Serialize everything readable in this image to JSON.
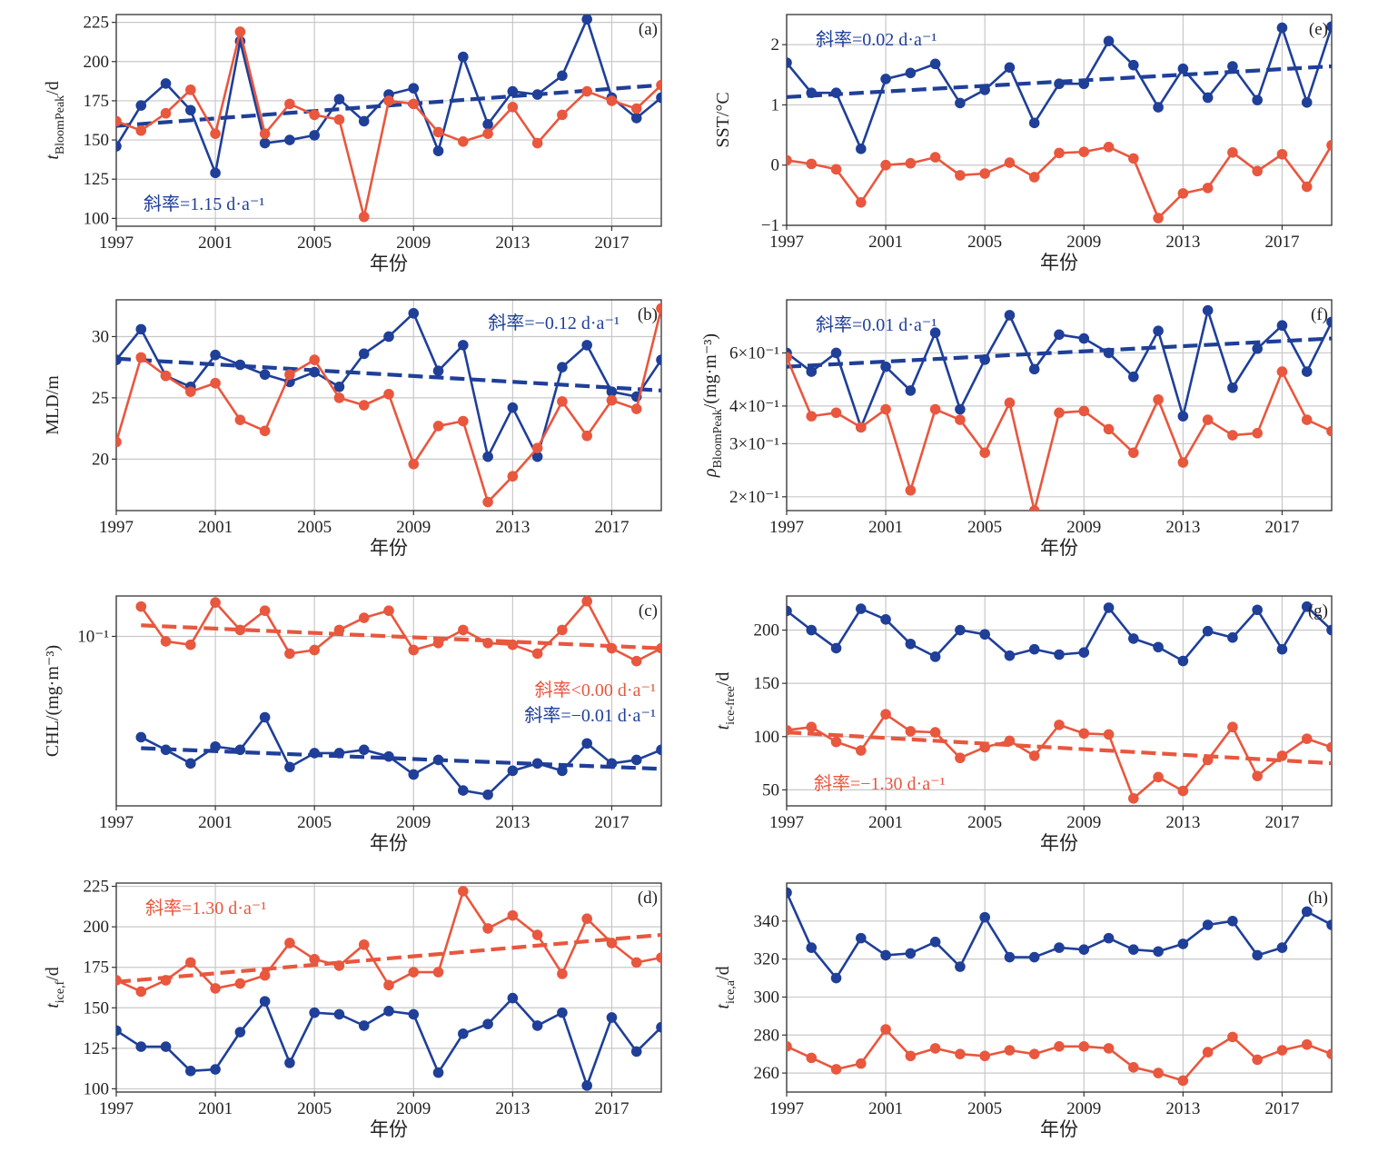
{
  "colors": {
    "blue": "#1f3f98",
    "red": "#e8573e",
    "grid": "#c8c8c8"
  },
  "chart_data": [
    {
      "id": "a",
      "type": "line",
      "panel_label": "(a)",
      "ylabel": "t_BloomPeak/d",
      "ylabel_main": "t",
      "ylabel_sub": "BloomPeak",
      "ylabel_suffix": "/d",
      "xlabel": "年份",
      "xlim": [
        1997,
        2019
      ],
      "ylim": [
        95,
        230
      ],
      "yscale": "linear",
      "xticks": [
        1997,
        2001,
        2005,
        2009,
        2013,
        2017
      ],
      "yticks": [
        100,
        125,
        150,
        175,
        200,
        225
      ],
      "ytick_labels": [
        "100",
        "125",
        "150",
        "175",
        "200",
        "225"
      ],
      "x": [
        1997,
        1998,
        1999,
        2000,
        2001,
        2002,
        2003,
        2004,
        2005,
        2006,
        2007,
        2008,
        2009,
        2010,
        2011,
        2012,
        2013,
        2014,
        2015,
        2016,
        2017,
        2018,
        2019
      ],
      "series": [
        {
          "color": "blue",
          "values": [
            146,
            172,
            186,
            169,
            129,
            213,
            148,
            150,
            153,
            176,
            162,
            179,
            183,
            143,
            203,
            160,
            181,
            179,
            191,
            227,
            177,
            164,
            177
          ]
        },
        {
          "color": "red",
          "values": [
            162,
            156,
            167,
            182,
            154,
            219,
            154,
            173,
            166,
            163,
            101,
            175,
            173,
            155,
            149,
            154,
            171,
            148,
            166,
            181,
            175,
            170,
            185
          ]
        }
      ],
      "trends": [
        {
          "color": "blue",
          "x": [
            1997,
            2019
          ],
          "y": [
            159,
            185
          ]
        }
      ],
      "slope_labels": [
        {
          "text": "斜率=1.15 d·a⁻¹",
          "color": "blue",
          "anchor": "bottom-left"
        }
      ]
    },
    {
      "id": "e",
      "type": "line",
      "panel_label": "(e)",
      "ylabel": "SST/°C",
      "xlabel": "年份",
      "xlim": [
        1997,
        2019
      ],
      "ylim": [
        -1,
        2.5
      ],
      "yscale": "linear",
      "xticks": [
        1997,
        2001,
        2005,
        2009,
        2013,
        2017
      ],
      "yticks": [
        -1,
        0,
        1,
        2
      ],
      "ytick_labels": [
        "−1",
        "0",
        "1",
        "2"
      ],
      "x": [
        1997,
        1998,
        1999,
        2000,
        2001,
        2002,
        2003,
        2004,
        2005,
        2006,
        2007,
        2008,
        2009,
        2010,
        2011,
        2012,
        2013,
        2014,
        2015,
        2016,
        2017,
        2018,
        2019
      ],
      "series": [
        {
          "color": "blue",
          "values": [
            1.7,
            1.2,
            1.2,
            0.27,
            1.43,
            1.53,
            1.68,
            1.03,
            1.25,
            1.62,
            0.7,
            1.35,
            1.35,
            2.06,
            1.66,
            0.96,
            1.6,
            1.12,
            1.64,
            1.08,
            2.28,
            1.04,
            2.3
          ]
        },
        {
          "color": "red",
          "values": [
            0.08,
            0.02,
            -0.07,
            -0.62,
            0.0,
            0.03,
            0.13,
            -0.17,
            -0.14,
            0.04,
            -0.2,
            0.2,
            0.22,
            0.3,
            0.11,
            -0.88,
            -0.47,
            -0.38,
            0.21,
            -0.1,
            0.18,
            -0.36,
            0.33
          ]
        }
      ],
      "trends": [
        {
          "color": "blue",
          "x": [
            1997,
            2019
          ],
          "y": [
            1.13,
            1.64
          ]
        }
      ],
      "slope_labels": [
        {
          "text": "斜率=0.02 d·a⁻¹",
          "color": "blue",
          "anchor": "top-left"
        }
      ]
    },
    {
      "id": "b",
      "type": "line",
      "panel_label": "(b)",
      "ylabel": "MLD/m",
      "xlabel": "年份",
      "xlim": [
        1997,
        2019
      ],
      "ylim": [
        15.8,
        33
      ],
      "yscale": "linear",
      "xticks": [
        1997,
        2001,
        2005,
        2009,
        2013,
        2017
      ],
      "yticks": [
        20,
        25,
        30
      ],
      "ytick_labels": [
        "20",
        "25",
        "30"
      ],
      "x": [
        1997,
        1998,
        1999,
        2000,
        2001,
        2002,
        2003,
        2004,
        2005,
        2006,
        2007,
        2008,
        2009,
        2010,
        2011,
        2012,
        2013,
        2014,
        2015,
        2016,
        2017,
        2018,
        2019
      ],
      "series": [
        {
          "color": "blue",
          "values": [
            28.1,
            30.6,
            26.8,
            25.9,
            28.5,
            27.7,
            26.9,
            26.3,
            27.1,
            25.9,
            28.6,
            30.0,
            31.9,
            27.2,
            29.3,
            20.2,
            24.2,
            20.2,
            27.5,
            29.3,
            25.5,
            25.1,
            28.1
          ]
        },
        {
          "color": "red",
          "values": [
            21.4,
            28.3,
            26.8,
            25.5,
            26.2,
            23.2,
            22.3,
            26.9,
            28.1,
            25.0,
            24.4,
            25.3,
            19.6,
            22.7,
            23.1,
            16.5,
            18.6,
            20.9,
            24.7,
            21.9,
            24.8,
            24.1,
            32.3
          ]
        }
      ],
      "trends": [
        {
          "color": "blue",
          "x": [
            1997,
            2019
          ],
          "y": [
            28.2,
            25.6
          ]
        }
      ],
      "slope_labels": [
        {
          "text": "斜率=−0.12 d·a⁻¹",
          "color": "blue",
          "anchor": "top-right"
        }
      ]
    },
    {
      "id": "f",
      "type": "line",
      "panel_label": "(f)",
      "ylabel": "ρ_BloomPeak/(mg·m⁻³)",
      "ylabel_main": "ρ",
      "ylabel_sub": "BloomPeak",
      "ylabel_suffix": "/(mg·m⁻³)",
      "xlabel": "年份",
      "xlim": [
        1997,
        2019
      ],
      "ylim": [
        0.18,
        0.9
      ],
      "yscale": "log",
      "xticks": [
        1997,
        2001,
        2005,
        2009,
        2013,
        2017
      ],
      "yticks": [
        0.2,
        0.3,
        0.4,
        0.6
      ],
      "ytick_labels": [
        "2×10⁻¹",
        "3×10⁻¹",
        "4×10⁻¹",
        "6×10⁻¹"
      ],
      "x": [
        1997,
        1998,
        1999,
        2000,
        2001,
        2002,
        2003,
        2004,
        2005,
        2006,
        2007,
        2008,
        2009,
        2010,
        2011,
        2012,
        2013,
        2014,
        2015,
        2016,
        2017,
        2018,
        2019
      ],
      "series": [
        {
          "color": "blue",
          "values": [
            0.6,
            0.52,
            0.6,
            0.34,
            0.54,
            0.45,
            0.7,
            0.39,
            0.57,
            0.8,
            0.53,
            0.69,
            0.67,
            0.6,
            0.5,
            0.71,
            0.37,
            0.83,
            0.46,
            0.62,
            0.74,
            0.52,
            0.76
          ]
        },
        {
          "color": "red",
          "values": [
            0.58,
            0.37,
            0.38,
            0.34,
            0.39,
            0.21,
            0.39,
            0.36,
            0.28,
            0.41,
            0.18,
            0.38,
            0.385,
            0.335,
            0.28,
            0.42,
            0.26,
            0.36,
            0.32,
            0.325,
            0.52,
            0.36,
            0.33
          ]
        }
      ],
      "trends": [
        {
          "color": "blue",
          "x": [
            1997,
            2019
          ],
          "y": [
            0.54,
            0.67
          ]
        }
      ],
      "slope_labels": [
        {
          "text": "斜率=0.01 d·a⁻¹",
          "color": "blue",
          "anchor": "top-left"
        }
      ]
    },
    {
      "id": "c",
      "type": "line",
      "panel_label": "(c)",
      "ylabel": "CHL/(mg·m⁻³)",
      "xlabel": "年份",
      "xlim": [
        1997,
        2019
      ],
      "ylim": [
        0.0355,
        0.128
      ],
      "yscale": "log",
      "xticks": [
        1997,
        2001,
        2005,
        2009,
        2013,
        2017
      ],
      "yticks": [
        0.1
      ],
      "ytick_labels": [
        "10⁻¹"
      ],
      "x": [
        1998,
        1999,
        2000,
        2001,
        2002,
        2003,
        2004,
        2005,
        2006,
        2007,
        2008,
        2009,
        2010,
        2011,
        2012,
        2013,
        2014,
        2015,
        2016,
        2017,
        2018,
        2019
      ],
      "series": [
        {
          "color": "red",
          "values": [
            0.12,
            0.097,
            0.095,
            0.123,
            0.104,
            0.117,
            0.09,
            0.092,
            0.104,
            0.112,
            0.117,
            0.092,
            0.096,
            0.104,
            0.096,
            0.095,
            0.09,
            0.104,
            0.124,
            0.093,
            0.086,
            0.093
          ]
        },
        {
          "color": "blue",
          "values": [
            0.054,
            0.05,
            0.046,
            0.051,
            0.05,
            0.061,
            0.045,
            0.049,
            0.049,
            0.05,
            0.048,
            0.043,
            0.047,
            0.039,
            0.038,
            0.044,
            0.046,
            0.044,
            0.052,
            0.046,
            0.047,
            0.05
          ]
        }
      ],
      "trends": [
        {
          "color": "red",
          "x": [
            1998,
            2019
          ],
          "y": [
            0.107,
            0.093
          ]
        },
        {
          "color": "blue",
          "x": [
            1998,
            2019
          ],
          "y": [
            0.0505,
            0.0445
          ]
        }
      ],
      "slope_labels": [
        {
          "text": "斜率<0.00 d·a⁻¹",
          "color": "red",
          "anchor": "mid-right-upper"
        },
        {
          "text": "斜率=−0.01 d·a⁻¹",
          "color": "blue",
          "anchor": "mid-right-lower"
        }
      ]
    },
    {
      "id": "g",
      "type": "line",
      "panel_label": "(g)",
      "ylabel": "t_ice-free/d",
      "ylabel_main": "t",
      "ylabel_sub": "ice-free",
      "ylabel_suffix": "/d",
      "xlabel": "年份",
      "xlim": [
        1997,
        2019
      ],
      "ylim": [
        35,
        232
      ],
      "yscale": "linear",
      "xticks": [
        1997,
        2001,
        2005,
        2009,
        2013,
        2017
      ],
      "yticks": [
        50,
        100,
        150,
        200
      ],
      "ytick_labels": [
        "50",
        "100",
        "150",
        "200"
      ],
      "x": [
        1997,
        1998,
        1999,
        2000,
        2001,
        2002,
        2003,
        2004,
        2005,
        2006,
        2007,
        2008,
        2009,
        2010,
        2011,
        2012,
        2013,
        2014,
        2015,
        2016,
        2017,
        2018,
        2019
      ],
      "series": [
        {
          "color": "blue",
          "values": [
            218,
            200,
            183,
            220,
            210,
            187,
            175,
            200,
            196,
            176,
            182,
            177,
            179,
            221,
            192,
            184,
            171,
            199,
            193,
            219,
            182,
            222,
            200
          ]
        },
        {
          "color": "red",
          "values": [
            106,
            109,
            95,
            87,
            121,
            105,
            104,
            80,
            90,
            96,
            82,
            111,
            103,
            102,
            42,
            62,
            49,
            78,
            109,
            63,
            82,
            98,
            90
          ]
        }
      ],
      "trends": [
        {
          "color": "red",
          "x": [
            1997,
            2019
          ],
          "y": [
            104,
            75
          ]
        }
      ],
      "slope_labels": [
        {
          "text": "斜率=−1.30 d·a⁻¹",
          "color": "red",
          "anchor": "bottom-left"
        }
      ]
    },
    {
      "id": "d",
      "type": "line",
      "panel_label": "(d)",
      "ylabel": "t_ice,f/d",
      "ylabel_main": "t",
      "ylabel_sub": "ice,f",
      "ylabel_suffix": "/d",
      "xlabel": "年份",
      "xlim": [
        1997,
        2019
      ],
      "ylim": [
        98,
        227
      ],
      "yscale": "linear",
      "xticks": [
        1997,
        2001,
        2005,
        2009,
        2013,
        2017
      ],
      "yticks": [
        100,
        125,
        150,
        175,
        200,
        225
      ],
      "ytick_labels": [
        "100",
        "125",
        "150",
        "175",
        "200",
        "225"
      ],
      "x": [
        1997,
        1998,
        1999,
        2000,
        2001,
        2002,
        2003,
        2004,
        2005,
        2006,
        2007,
        2008,
        2009,
        2010,
        2011,
        2012,
        2013,
        2014,
        2015,
        2016,
        2017,
        2018,
        2019
      ],
      "series": [
        {
          "color": "red",
          "values": [
            167,
            160,
            167,
            178,
            162,
            165,
            170,
            190,
            180,
            176,
            189,
            164,
            172,
            172,
            222,
            199,
            207,
            195,
            171,
            205,
            190,
            178,
            181
          ]
        },
        {
          "color": "blue",
          "values": [
            136,
            126,
            126,
            111,
            112,
            135,
            154,
            116,
            147,
            146,
            139,
            148,
            146,
            110,
            134,
            140,
            156,
            139,
            147,
            102,
            144,
            123,
            138
          ]
        }
      ],
      "trends": [
        {
          "color": "red",
          "x": [
            1997,
            2019
          ],
          "y": [
            166,
            195
          ]
        }
      ],
      "slope_labels": [
        {
          "text": "斜率=1.30 d·a⁻¹",
          "color": "red",
          "anchor": "top-left"
        }
      ]
    },
    {
      "id": "h",
      "type": "line",
      "panel_label": "(h)",
      "ylabel": "t_ice,a/d",
      "ylabel_main": "t",
      "ylabel_sub": "ice,a",
      "ylabel_suffix": "/d",
      "xlabel": "年份",
      "xlim": [
        1997,
        2019
      ],
      "ylim": [
        250,
        360
      ],
      "yscale": "linear",
      "xticks": [
        1997,
        2001,
        2005,
        2009,
        2013,
        2017
      ],
      "yticks": [
        260,
        280,
        300,
        320,
        340
      ],
      "ytick_labels": [
        "260",
        "280",
        "300",
        "320",
        "340"
      ],
      "x": [
        1997,
        1998,
        1999,
        2000,
        2001,
        2002,
        2003,
        2004,
        2005,
        2006,
        2007,
        2008,
        2009,
        2010,
        2011,
        2012,
        2013,
        2014,
        2015,
        2016,
        2017,
        2018,
        2019
      ],
      "series": [
        {
          "color": "blue",
          "values": [
            355,
            326,
            310,
            331,
            322,
            323,
            329,
            316,
            342,
            321,
            321,
            326,
            325,
            331,
            325,
            324,
            328,
            338,
            340,
            322,
            326,
            345,
            338
          ]
        },
        {
          "color": "red",
          "values": [
            274,
            268,
            262,
            265,
            283,
            269,
            273,
            270,
            269,
            272,
            270,
            274,
            274,
            273,
            263,
            260,
            256,
            271,
            279,
            267,
            272,
            275,
            270
          ]
        }
      ],
      "trends": [],
      "slope_labels": []
    }
  ]
}
